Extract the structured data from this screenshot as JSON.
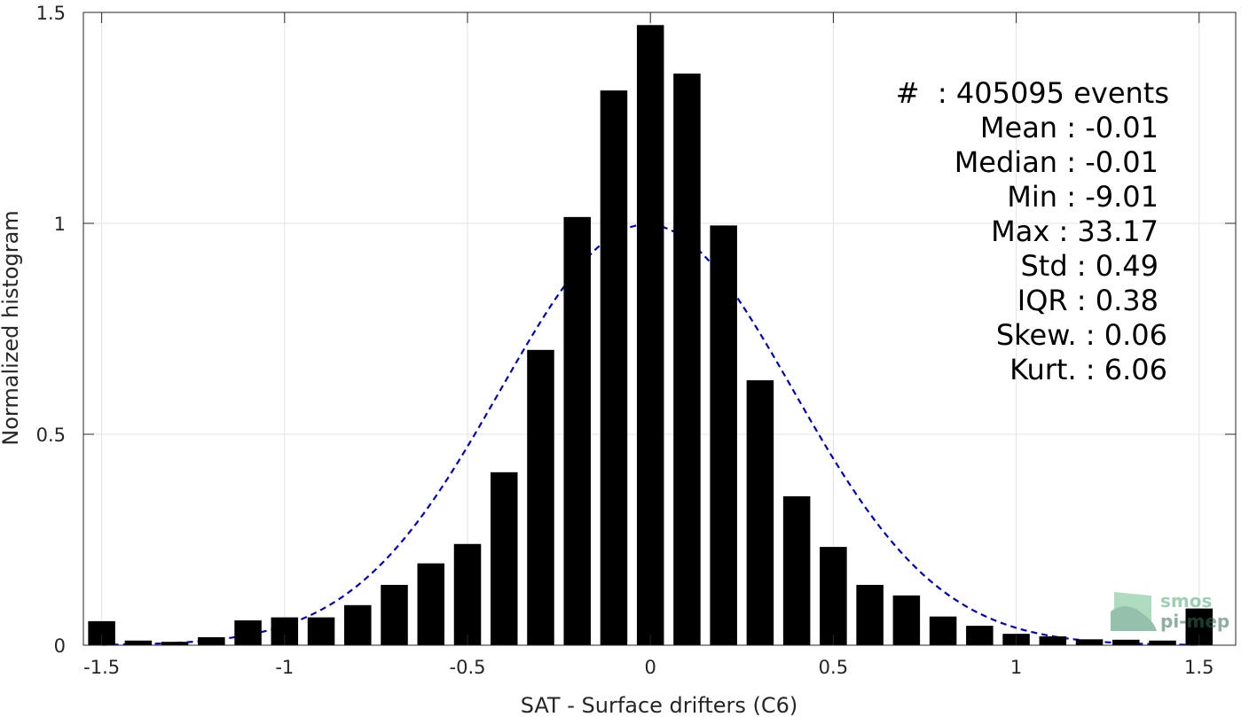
{
  "chart_data": {
    "type": "bar",
    "xlabel": "SAT - Surface drifters (C6)",
    "ylabel": "Normalized histogram",
    "xlim": [
      -1.55,
      1.6
    ],
    "ylim": [
      0,
      1.5
    ],
    "xticks": [
      -1.5,
      -1,
      -0.5,
      0,
      0.5,
      1,
      1.5
    ],
    "xtick_labels": [
      "-1.5",
      "-1",
      "-0.5",
      "0",
      "0.5",
      "1",
      "1.5"
    ],
    "yticks": [
      0,
      0.5,
      1,
      1.5
    ],
    "ytick_labels": [
      "0",
      "0.5",
      "1",
      "1.5"
    ],
    "grid": true,
    "bar_color": "#000000",
    "curve_color": "#0000cc",
    "x": [
      -1.5,
      -1.4,
      -1.3,
      -1.2,
      -1.1,
      -1.0,
      -0.9,
      -0.8,
      -0.7,
      -0.6,
      -0.5,
      -0.4,
      -0.3,
      -0.2,
      -0.1,
      0.0,
      0.1,
      0.2,
      0.3,
      0.4,
      0.5,
      0.6,
      0.7,
      0.8,
      0.9,
      1.0,
      1.1,
      1.2,
      1.3,
      1.4,
      1.5
    ],
    "values": [
      0.057,
      0.011,
      0.008,
      0.019,
      0.059,
      0.066,
      0.066,
      0.095,
      0.143,
      0.194,
      0.24,
      0.41,
      0.7,
      1.015,
      1.315,
      1.47,
      1.355,
      0.995,
      0.628,
      0.353,
      0.233,
      0.143,
      0.118,
      0.068,
      0.046,
      0.027,
      0.021,
      0.014,
      0.013,
      0.011,
      0.087
    ],
    "fit_curve": {
      "type": "normal",
      "mean": -0.01,
      "std": 0.4,
      "line_style": "dashed"
    }
  },
  "stats": [
    "#  : 405095 events",
    "Mean : -0.01",
    "Median : -0.01",
    "Min : -9.01",
    "Max : 33.17",
    "Std : 0.49",
    "IQR : 0.38",
    "Skew. : 0.06",
    "Kurt. : 6.06"
  ],
  "logo": {
    "line1": "smos",
    "line2": "pi-mep"
  }
}
